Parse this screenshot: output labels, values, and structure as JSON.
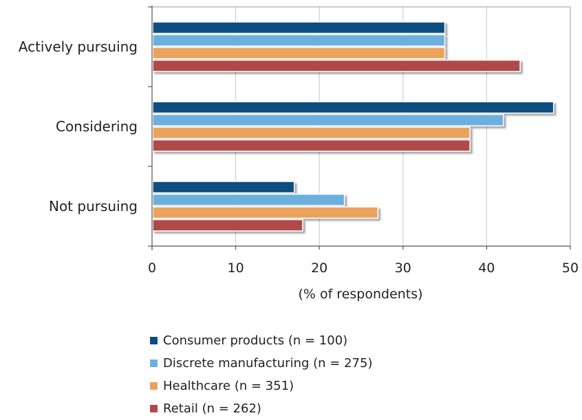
{
  "chart_data": {
    "type": "bar",
    "orientation": "horizontal",
    "categories": [
      "Actively pursuing",
      "Considering",
      "Not pursuing"
    ],
    "series": [
      {
        "name": "Consumer products (n = 100)",
        "color": "#0e4d80",
        "values": [
          35,
          48,
          17
        ]
      },
      {
        "name": "Discrete manufacturing (n = 275)",
        "color": "#6cb0df",
        "values": [
          35,
          42,
          23
        ]
      },
      {
        "name": "Healthcare (n = 351)",
        "color": "#eba35c",
        "values": [
          35,
          38,
          27
        ]
      },
      {
        "name": "Retail (n = 262)",
        "color": "#b04a48",
        "values": [
          44,
          38,
          18
        ]
      }
    ],
    "xlabel": "(% of respondents)",
    "xlim": [
      0,
      50
    ],
    "xticks": [
      0,
      10,
      20,
      30,
      40,
      50
    ],
    "grid": "vertical",
    "legend_position": "bottom"
  }
}
